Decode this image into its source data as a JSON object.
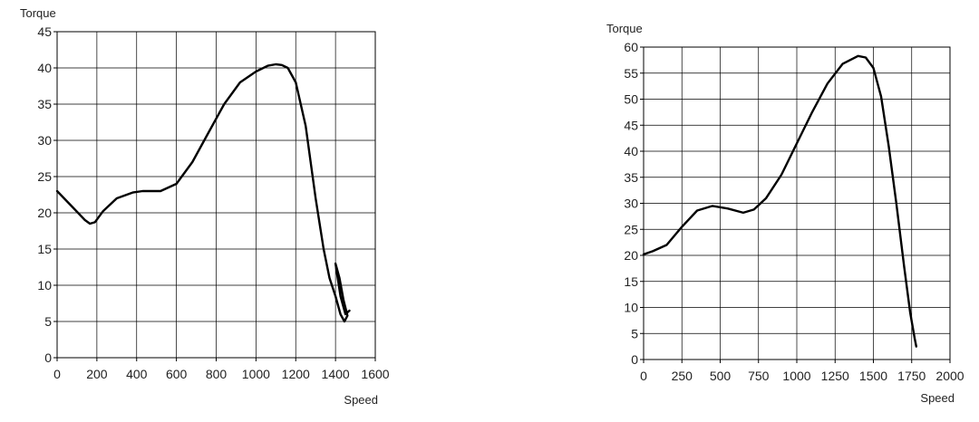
{
  "chart_data": [
    {
      "type": "line",
      "xlabel": "Speed",
      "ylabel": "Torque",
      "xlim": [
        0,
        1600
      ],
      "ylim": [
        0,
        45
      ],
      "xticks": [
        0,
        200,
        400,
        600,
        800,
        1000,
        1200,
        1400,
        1600
      ],
      "yticks": [
        0,
        5,
        10,
        15,
        20,
        25,
        30,
        35,
        40,
        45
      ],
      "grid": true,
      "series": [
        {
          "x": [
            0,
            70,
            140,
            165,
            190,
            230,
            300,
            380,
            430,
            520,
            600,
            680,
            760,
            840,
            920,
            1000,
            1060,
            1100,
            1130,
            1160,
            1200,
            1250,
            1300,
            1340,
            1370,
            1400,
            1425,
            1445,
            1460,
            1440,
            1420,
            1400,
            1425,
            1450,
            1470
          ],
          "y": [
            23,
            21,
            19,
            18.5,
            18.7,
            20.2,
            22,
            22.8,
            23,
            23,
            24,
            27,
            31,
            35,
            38,
            39.5,
            40.3,
            40.5,
            40.4,
            40,
            38,
            32,
            22,
            15,
            11,
            8.5,
            6,
            5,
            5.8,
            8,
            11,
            13,
            8.5,
            6,
            6.5
          ]
        }
      ]
    },
    {
      "type": "line",
      "xlabel": "Speed",
      "ylabel": "Torque",
      "xlim": [
        0,
        2000
      ],
      "ylim": [
        0,
        60
      ],
      "xticks": [
        0,
        250,
        500,
        750,
        1000,
        1250,
        1500,
        1750,
        2000
      ],
      "yticks": [
        0,
        5,
        10,
        15,
        20,
        25,
        30,
        35,
        40,
        45,
        50,
        55,
        60
      ],
      "grid": true,
      "series": [
        {
          "x": [
            0,
            60,
            150,
            250,
            350,
            450,
            550,
            650,
            720,
            800,
            900,
            1000,
            1100,
            1200,
            1300,
            1400,
            1450,
            1500,
            1550,
            1600,
            1650,
            1700,
            1740,
            1770,
            1780
          ],
          "y": [
            20.2,
            20.8,
            22,
            25.5,
            28.6,
            29.5,
            29,
            28.2,
            28.8,
            31,
            35.5,
            41.5,
            47.5,
            53,
            56.8,
            58.3,
            58,
            56,
            50.5,
            41,
            30,
            18,
            9,
            4,
            2.5
          ]
        }
      ]
    }
  ]
}
